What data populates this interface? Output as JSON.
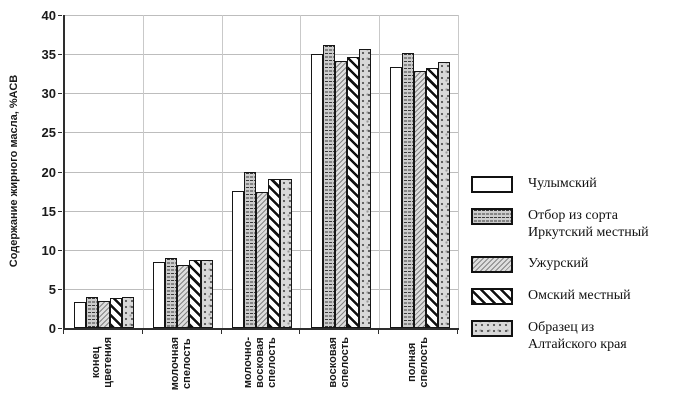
{
  "chart_data": {
    "type": "bar",
    "title": "",
    "xlabel": "",
    "ylabel": "Содержание жирного масла, %АСВ",
    "ylim": [
      0,
      40
    ],
    "yticks": [
      0,
      5,
      10,
      15,
      20,
      25,
      30,
      35,
      40
    ],
    "grid": "horizontal and vertical category separators",
    "legend_position": "right",
    "categories": [
      "конец\nцветения",
      "молочная\nспелость",
      "молочно-\nвосковая\nспелость",
      "восковая\nспелость",
      "полная\nспелость"
    ],
    "series": [
      {
        "name": "Чулымский",
        "pattern": "white",
        "values": [
          3.3,
          8.4,
          17.5,
          35.0,
          33.3
        ]
      },
      {
        "name": "Отбор из сорта\nИркутский местный",
        "pattern": "gray-horizontal-dash",
        "values": [
          4.0,
          9.0,
          20.0,
          36.2,
          35.1
        ]
      },
      {
        "name": "Ужурский",
        "pattern": "light-gray-fine-hatch",
        "values": [
          3.4,
          8.1,
          17.4,
          34.1,
          32.9
        ]
      },
      {
        "name": "Омский местный",
        "pattern": "black-diagonal-hatch",
        "values": [
          3.8,
          8.7,
          19.0,
          34.6,
          33.2
        ]
      },
      {
        "name": "Образец из\nАлтайского края",
        "pattern": "gray-speckle",
        "values": [
          3.9,
          8.7,
          19.1,
          35.6,
          34.0
        ]
      }
    ]
  }
}
